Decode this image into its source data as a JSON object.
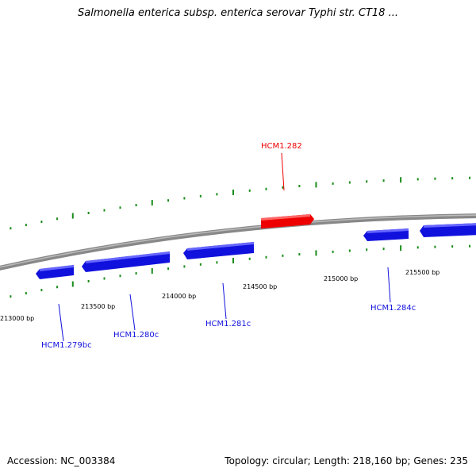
{
  "title": "Salmonella enterica subsp. enterica serovar Typhi str. CT18 ...",
  "footer": {
    "accession": "Accession: NC_003384",
    "stats": "Topology: circular; Length: 218,160 bp; Genes: 235"
  },
  "colors": {
    "forward_gene": "#ee0000",
    "reverse_gene": "#1111dd",
    "backbone": "#888888",
    "ticks": "#1a8c1a"
  },
  "ticks": [
    {
      "label": "213000 bp"
    },
    {
      "label": "213500 bp"
    },
    {
      "label": "214000 bp"
    },
    {
      "label": "214500 bp"
    },
    {
      "label": "215000 bp"
    },
    {
      "label": "215500 bp"
    }
  ],
  "genes": [
    {
      "label": "HCM1.282",
      "strand": "forward"
    },
    {
      "label": "HCM1.279bc",
      "strand": "reverse"
    },
    {
      "label": "HCM1.280c",
      "strand": "reverse"
    },
    {
      "label": "HCM1.281c",
      "strand": "reverse"
    },
    {
      "label": "HCM1.284c",
      "strand": "reverse"
    }
  ]
}
